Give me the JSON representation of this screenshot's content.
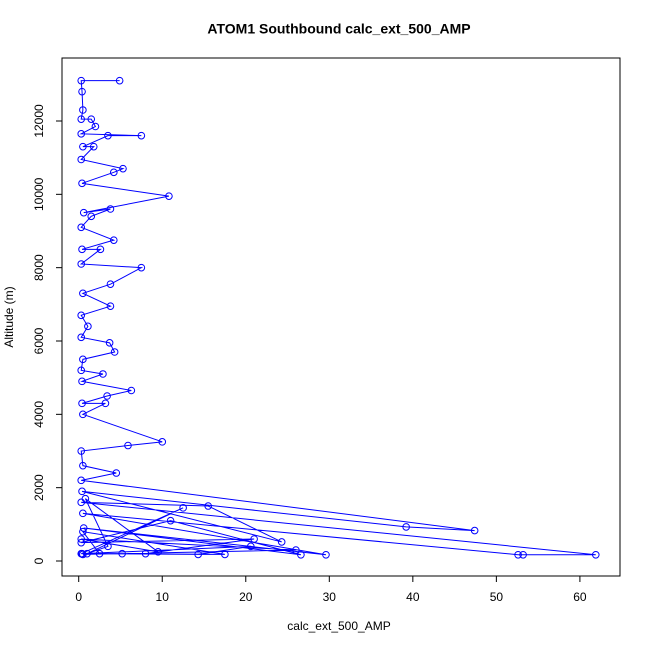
{
  "chart_data": {
    "type": "line",
    "title": "ATOM1 Southbound calc_ext_500_AMP",
    "x_label": "calc_ext_500_AMP",
    "y_label": "Altitude (m)",
    "series": [
      {
        "color": "#0000ff",
        "x": [
          4.9,
          0.3,
          0.4,
          0.5,
          0.3,
          1.5,
          2,
          0.3,
          7.5,
          3.5,
          0.5,
          1.8,
          0.3,
          5.3,
          4.2,
          0.4,
          10.8,
          0.6,
          3.8,
          1.5,
          0.3,
          4.2,
          0.4,
          2.6,
          0.3,
          7.5,
          3.8,
          0.5,
          3.8,
          0.3,
          1.1,
          0.3,
          3.7,
          4.3,
          0.5,
          0.3,
          2.9,
          0.4,
          6.3,
          3.4,
          0.4,
          3.2,
          0.5,
          10,
          5.9,
          0.3,
          0.5,
          4.5,
          0.3,
          47.4,
          39.2,
          0.4,
          24.3,
          15.5,
          0.3,
          61.9,
          53.2,
          52.6,
          0.5,
          29.6,
          0.6,
          26.6,
          11,
          0.3,
          21,
          8,
          0.4,
          20.6,
          14.3,
          2.5,
          0.5,
          17.5,
          5.2,
          0.3,
          12.5,
          1,
          3.5,
          0.8,
          9.5,
          0.3,
          26,
          0.5
        ],
        "y": [
          13100,
          13100,
          12800,
          12300,
          12050,
          12050,
          11850,
          11650,
          11600,
          11600,
          11300,
          11300,
          10950,
          10700,
          10600,
          10300,
          9950,
          9500,
          9600,
          9400,
          9100,
          8750,
          8500,
          8500,
          8100,
          8000,
          7550,
          7300,
          6950,
          6700,
          6400,
          6100,
          5950,
          5700,
          5500,
          5200,
          5100,
          4900,
          4650,
          4500,
          4300,
          4300,
          4000,
          3250,
          3150,
          3000,
          2600,
          2400,
          2200,
          830,
          930,
          1900,
          520,
          1500,
          1600,
          170,
          170,
          170,
          1300,
          170,
          900,
          170,
          1100,
          500,
          600,
          200,
          200,
          400,
          180,
          200,
          800,
          180,
          200,
          200,
          1450,
          200,
          400,
          1700,
          250,
          600,
          300,
          180
        ]
      }
    ],
    "xlim": [
      -2,
      64.8
    ],
    "ylim": [
      -409,
      13718
    ],
    "xticks": [
      0,
      10,
      20,
      30,
      40,
      50,
      60
    ],
    "yticks": [
      0,
      2000,
      4000,
      6000,
      8000,
      10000,
      12000
    ]
  }
}
